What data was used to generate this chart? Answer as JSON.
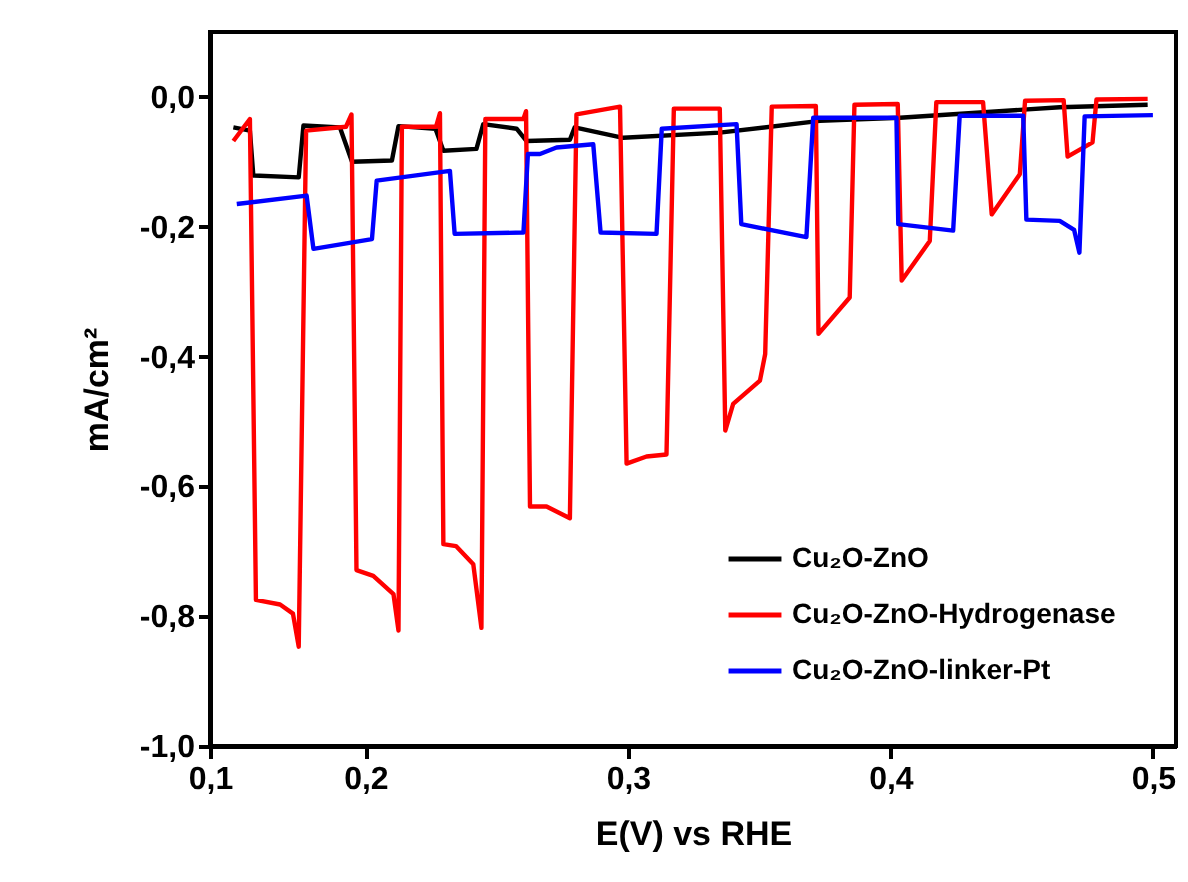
{
  "chart_data": {
    "type": "line",
    "xlabel": "E(V) vs RHE",
    "ylabel": "mA/cm²",
    "xlim": [
      0.1408,
      0.5088
    ],
    "ylim": [
      -1.0,
      0.1
    ],
    "xticks": [
      {
        "value": 0.1408,
        "label": "0,1"
      },
      {
        "value": 0.2,
        "label": "0,2"
      },
      {
        "value": 0.3,
        "label": "0,3"
      },
      {
        "value": 0.4,
        "label": "0,4"
      },
      {
        "value": 0.5,
        "label": "0,5"
      }
    ],
    "yticks": [
      {
        "value": -1.0,
        "label": "-1,0"
      },
      {
        "value": -0.8,
        "label": "-0,8"
      },
      {
        "value": -0.6,
        "label": "-0,6"
      },
      {
        "value": -0.4,
        "label": "-0,4"
      },
      {
        "value": -0.2,
        "label": "-0,2"
      },
      {
        "value": 0.0,
        "label": "0,0"
      }
    ],
    "legend": "bottom right",
    "line_style": "solid",
    "series": [
      {
        "name": "Cu₂O-ZnO",
        "color": "#000000",
        "x": [
          0.1497,
          0.156,
          0.1573,
          0.1746,
          0.1764,
          0.1903,
          0.1949,
          0.2101,
          0.2126,
          0.2267,
          0.2297,
          0.2423,
          0.2449,
          0.2576,
          0.2614,
          0.2779,
          0.2797,
          0.2982,
          0.335,
          0.3731,
          0.4036,
          0.4645,
          0.498
        ],
        "values": [
          -0.047,
          -0.052,
          -0.121,
          -0.124,
          -0.044,
          -0.047,
          -0.1,
          -0.098,
          -0.045,
          -0.049,
          -0.083,
          -0.08,
          -0.042,
          -0.049,
          -0.068,
          -0.066,
          -0.047,
          -0.063,
          -0.055,
          -0.037,
          -0.032,
          -0.016,
          -0.012
        ]
      },
      {
        "name": "Cu₂O-ZnO-Hydrogenase",
        "color": "#ff0000",
        "x": [
          0.1497,
          0.156,
          0.1583,
          0.1675,
          0.1724,
          0.1746,
          0.1774,
          0.1926,
          0.1947,
          0.1966,
          0.203,
          0.2107,
          0.2126,
          0.2139,
          0.2269,
          0.2284,
          0.2297,
          0.2345,
          0.2411,
          0.2442,
          0.2457,
          0.2602,
          0.2612,
          0.2627,
          0.269,
          0.2779,
          0.2804,
          0.297,
          0.2995,
          0.3071,
          0.3147,
          0.3175,
          0.335,
          0.3371,
          0.3401,
          0.3503,
          0.3523,
          0.3548,
          0.3716,
          0.3726,
          0.3845,
          0.3863,
          0.4028,
          0.4043,
          0.415,
          0.4175,
          0.4353,
          0.4386,
          0.4493,
          0.4513,
          0.466,
          0.4675,
          0.477,
          0.4785,
          0.498
        ],
        "values": [
          -0.068,
          -0.034,
          -0.775,
          -0.782,
          -0.796,
          -0.847,
          -0.052,
          -0.046,
          -0.027,
          -0.729,
          -0.738,
          -0.766,
          -0.822,
          -0.046,
          -0.046,
          -0.025,
          -0.689,
          -0.692,
          -0.72,
          -0.818,
          -0.034,
          -0.034,
          -0.022,
          -0.631,
          -0.631,
          -0.649,
          -0.027,
          -0.015,
          -0.565,
          -0.554,
          -0.551,
          -0.018,
          -0.018,
          -0.514,
          -0.473,
          -0.437,
          -0.396,
          -0.015,
          -0.014,
          -0.365,
          -0.309,
          -0.012,
          -0.011,
          -0.283,
          -0.222,
          -0.008,
          -0.008,
          -0.181,
          -0.119,
          -0.006,
          -0.005,
          -0.092,
          -0.07,
          -0.004,
          -0.003
        ]
      },
      {
        "name": "Cu₂O-ZnO-linker-Pt",
        "color": "#0000ff",
        "x": [
          0.151,
          0.1776,
          0.1802,
          0.2025,
          0.2043,
          0.2322,
          0.234,
          0.2602,
          0.2619,
          0.2665,
          0.2728,
          0.2868,
          0.2896,
          0.3109,
          0.3129,
          0.3414,
          0.3432,
          0.368,
          0.3706,
          0.4023,
          0.403,
          0.4239,
          0.4264,
          0.4506,
          0.4518,
          0.4645,
          0.47,
          0.472,
          0.474,
          0.5
        ],
        "values": [
          -0.165,
          -0.152,
          -0.234,
          -0.219,
          -0.129,
          -0.114,
          -0.211,
          -0.209,
          -0.088,
          -0.088,
          -0.078,
          -0.073,
          -0.209,
          -0.211,
          -0.049,
          -0.042,
          -0.196,
          -0.216,
          -0.032,
          -0.032,
          -0.196,
          -0.206,
          -0.029,
          -0.029,
          -0.189,
          -0.191,
          -0.205,
          -0.24,
          -0.03,
          -0.028
        ]
      }
    ]
  }
}
